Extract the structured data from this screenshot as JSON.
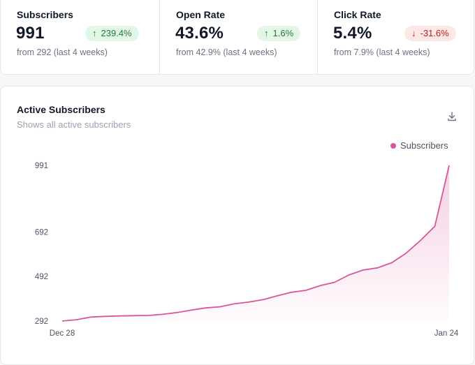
{
  "stats": [
    {
      "label": "Subscribers",
      "value": "991",
      "change": "239.4%",
      "direction": "up",
      "sub": "from 292 (last 4 weeks)"
    },
    {
      "label": "Open Rate",
      "value": "43.6%",
      "change": "1.6%",
      "direction": "up",
      "sub": "from 42.9% (last 4 weeks)"
    },
    {
      "label": "Click Rate",
      "value": "5.4%",
      "change": "-31.6%",
      "direction": "down",
      "sub": "from 7.9% (last 4 weeks)"
    }
  ],
  "card": {
    "title": "Active Subscribers",
    "subtitle": "Shows all active subscribers",
    "download_icon": "download-icon"
  },
  "colors": {
    "accent": "#d9559b",
    "up": "#1f7a3a",
    "down": "#b42318"
  },
  "chart_data": {
    "type": "area",
    "title": "",
    "xlabel": "",
    "ylabel": "",
    "legend": {
      "entries": [
        "Subscribers"
      ],
      "position": "top-right"
    },
    "x_tick_labels": [
      "Dec 28",
      "Jan 24"
    ],
    "y_ticks": [
      292,
      492,
      692,
      991
    ],
    "ylim": [
      292,
      991
    ],
    "grid": false,
    "series": [
      {
        "name": "Subscribers",
        "values": [
          292,
          298,
          310,
          313,
          315,
          316,
          317,
          322,
          330,
          341,
          351,
          356,
          369,
          377,
          388,
          405,
          421,
          430,
          451,
          466,
          499,
          521,
          531,
          554,
          597,
          654,
          718,
          991
        ]
      }
    ]
  }
}
